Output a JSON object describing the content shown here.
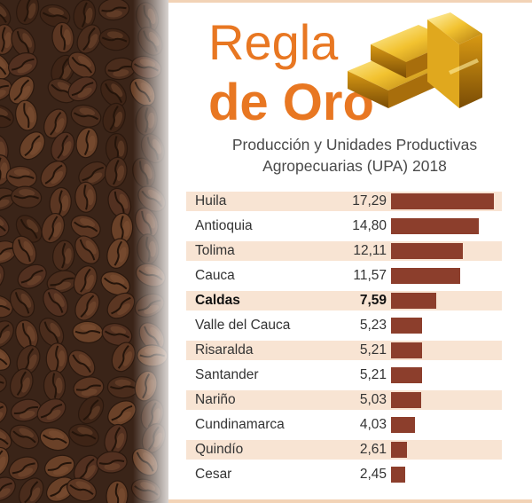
{
  "header": {
    "title_line1": "Regla",
    "title_line2": "de Oro",
    "subtitle_line1": "Producción y Unidades Productivas",
    "subtitle_line2": "Agropecuarias (UPA) 2018"
  },
  "colors": {
    "title": "#e87722",
    "bar": "#8c3e2c",
    "row_stripe": "#f8e4d3",
    "subtitle": "#4a4a4a"
  },
  "chart_data": {
    "type": "bar",
    "orientation": "horizontal",
    "title": "Producción y Unidades Productivas Agropecuarias (UPA) 2018",
    "categories": [
      "Huila",
      "Antioquia",
      "Tolima",
      "Cauca",
      "Caldas",
      "Valle del Cauca",
      "Risaralda",
      "Santander",
      "Nariño",
      "Cundinamarca",
      "Quindío",
      "Cesar"
    ],
    "values": [
      17.29,
      14.8,
      12.11,
      11.57,
      7.59,
      5.23,
      5.21,
      5.21,
      5.03,
      4.03,
      2.61,
      2.45
    ],
    "value_labels": [
      "17,29",
      "14,80",
      "12,11",
      "11,57",
      "7,59",
      "5,23",
      "5,21",
      "5,21",
      "5,03",
      "4,03",
      "2,61",
      "2,45"
    ],
    "highlight": "Caldas",
    "xlim": [
      0,
      17.29
    ],
    "grid": false,
    "legend": false
  }
}
